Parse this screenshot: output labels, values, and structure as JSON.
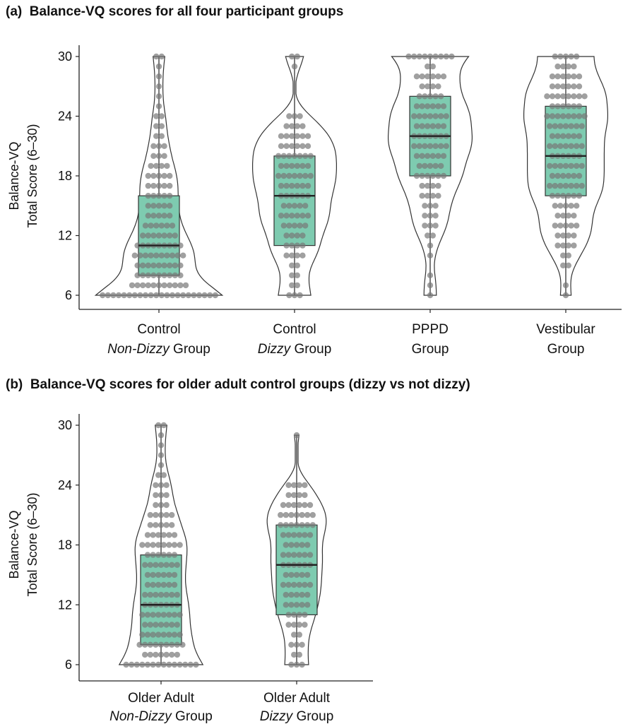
{
  "panels": [
    {
      "label": "(a)",
      "title": "Balance-VQ scores for all four participant groups",
      "ylabel_line1": "Balance-VQ",
      "ylabel_line2": "Total Score (6–30)",
      "groups": [
        {
          "line1": "Control",
          "line2_italic": "Non-Dizzy",
          "line2_plain": " Group"
        },
        {
          "line1": "Control",
          "line2_italic": "Dizzy",
          "line2_plain": " Group"
        },
        {
          "line1": "PPPD",
          "line2_italic": "",
          "line2_plain": "Group"
        },
        {
          "line1": "Vestibular",
          "line2_italic": "",
          "line2_plain": "Group"
        }
      ]
    },
    {
      "label": "(b)",
      "title": "Balance-VQ scores for older adult control groups (dizzy vs not dizzy)",
      "ylabel_line1": "Balance-VQ",
      "ylabel_line2": "Total Score (6–30)",
      "groups": [
        {
          "line1": "Older Adult",
          "line2_italic": "Non-Dizzy",
          "line2_plain": " Group"
        },
        {
          "line1": "Older Adult",
          "line2_italic": "Dizzy",
          "line2_plain": " Group"
        }
      ]
    }
  ],
  "chart_data": [
    {
      "type": "violin",
      "title": "(a) Balance-VQ scores for all four participant groups",
      "ylabel": "Balance-VQ Total Score (6–30)",
      "ylim": [
        6,
        30
      ],
      "yticks": [
        6,
        12,
        18,
        24,
        30
      ],
      "categories": [
        "Control Non-Dizzy Group",
        "Control Dizzy Group",
        "PPPD Group",
        "Vestibular Group"
      ],
      "box": [
        {
          "q1": 8,
          "median": 11,
          "q3": 16,
          "min": 6,
          "max": 30
        },
        {
          "q1": 11,
          "median": 16,
          "q3": 20,
          "min": 6,
          "max": 30
        },
        {
          "q1": 18,
          "median": 22,
          "q3": 26,
          "min": 6,
          "max": 30
        },
        {
          "q1": 16,
          "median": 20,
          "q3": 25,
          "min": 6,
          "max": 30
        }
      ],
      "points": [
        {
          "6": 22,
          "7": 11,
          "8": 9,
          "9": 9,
          "10": 10,
          "11": 9,
          "12": 7,
          "13": 6,
          "14": 5,
          "15": 5,
          "16": 5,
          "17": 5,
          "18": 5,
          "19": 4,
          "20": 3,
          "21": 3,
          "22": 2,
          "23": 2,
          "24": 2,
          "25": 1,
          "26": 1,
          "27": 1,
          "28": 1,
          "29": 1,
          "30": 2
        },
        {
          "6": 3,
          "7": 2,
          "8": 2,
          "9": 2,
          "10": 4,
          "11": 4,
          "12": 4,
          "13": 5,
          "14": 6,
          "15": 5,
          "16": 6,
          "17": 6,
          "18": 7,
          "19": 6,
          "20": 7,
          "21": 6,
          "22": 6,
          "23": 4,
          "24": 3,
          "29": 1,
          "30": 2
        },
        {
          "6": 1,
          "7": 1,
          "8": 1,
          "10": 1,
          "11": 1,
          "12": 2,
          "13": 3,
          "14": 3,
          "15": 3,
          "16": 4,
          "17": 4,
          "18": 6,
          "19": 5,
          "20": 6,
          "21": 7,
          "22": 7,
          "23": 6,
          "24": 7,
          "25": 6,
          "26": 5,
          "27": 4,
          "28": 6,
          "29": 2,
          "30": 9
        },
        {
          "6": 1,
          "7": 1,
          "9": 2,
          "10": 2,
          "11": 4,
          "12": 4,
          "13": 5,
          "14": 4,
          "15": 5,
          "16": 6,
          "17": 7,
          "18": 6,
          "19": 7,
          "20": 6,
          "21": 7,
          "22": 6,
          "23": 7,
          "24": 8,
          "25": 6,
          "26": 8,
          "27": 6,
          "28": 6,
          "29": 4,
          "30": 5
        }
      ]
    },
    {
      "type": "violin",
      "title": "(b) Balance-VQ scores for older adult control groups (dizzy vs not dizzy)",
      "ylabel": "Balance-VQ Total Score (6–30)",
      "ylim": [
        6,
        30
      ],
      "yticks": [
        6,
        12,
        18,
        24,
        30
      ],
      "categories": [
        "Older Adult Non-Dizzy Group",
        "Older Adult Dizzy Group"
      ],
      "box": [
        {
          "q1": 8,
          "median": 12,
          "q3": 17,
          "min": 6,
          "max": 30
        },
        {
          "q1": 11,
          "median": 16,
          "q3": 20,
          "min": 6,
          "max": 29
        }
      ],
      "points": [
        {
          "6": 14,
          "7": 7,
          "8": 9,
          "9": 8,
          "10": 7,
          "11": 8,
          "12": 7,
          "13": 7,
          "14": 6,
          "15": 6,
          "16": 7,
          "17": 6,
          "18": 8,
          "19": 6,
          "20": 5,
          "21": 5,
          "22": 3,
          "23": 3,
          "24": 3,
          "25": 2,
          "26": 1,
          "27": 1,
          "28": 1,
          "29": 1,
          "30": 2
        },
        {
          "6": 3,
          "7": 2,
          "8": 3,
          "9": 2,
          "10": 4,
          "11": 4,
          "12": 5,
          "13": 5,
          "14": 6,
          "15": 5,
          "16": 6,
          "17": 6,
          "18": 5,
          "19": 6,
          "20": 7,
          "21": 7,
          "22": 6,
          "23": 4,
          "24": 4,
          "29": 1
        }
      ]
    }
  ]
}
